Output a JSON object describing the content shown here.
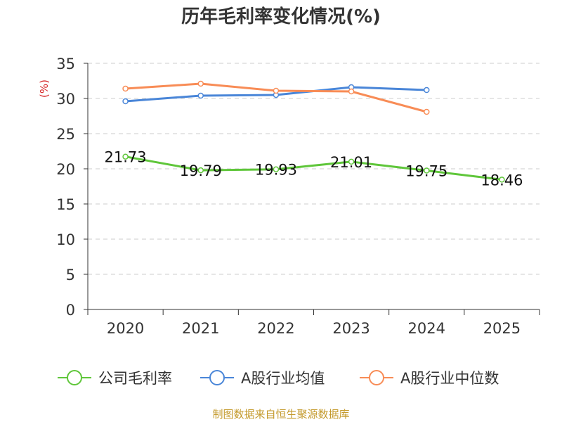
{
  "chart_data": {
    "type": "line",
    "title": "历年毛利率变化情况(%)",
    "ylabel": "(%)",
    "xlabel": "",
    "categories": [
      "2020",
      "2021",
      "2022",
      "2023",
      "2024",
      "2025"
    ],
    "ylim": [
      0,
      35
    ],
    "yticks": [
      0,
      5,
      10,
      15,
      20,
      25,
      30,
      35
    ],
    "grid": true,
    "legend_position": "bottom",
    "series": [
      {
        "name": "公司毛利率",
        "color": "#5fc63a",
        "show_labels": true,
        "values": [
          21.73,
          19.79,
          19.93,
          21.01,
          19.75,
          18.46
        ],
        "labels": [
          "21.73",
          "19.79",
          "19.93",
          "21.01",
          "19.75",
          "18.46"
        ]
      },
      {
        "name": "A股行业均值",
        "color": "#4a86d8",
        "show_labels": false,
        "values": [
          29.6,
          30.4,
          30.5,
          31.6,
          31.2,
          null
        ]
      },
      {
        "name": "A股行业中位数",
        "color": "#f88c56",
        "show_labels": false,
        "values": [
          31.4,
          32.1,
          31.1,
          31.0,
          28.1,
          null
        ]
      }
    ]
  },
  "source_text": "制图数据来自恒生聚源数据库"
}
